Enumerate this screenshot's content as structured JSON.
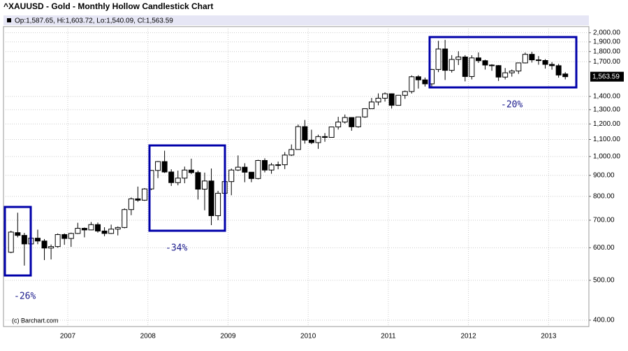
{
  "chart_data": {
    "type": "candlestick",
    "title": "^XAUUSD - Gold - Monthly Hollow Candlestick Chart",
    "info": "Op:1,587.65, Hi:1,603.72, Lo:1,540.09, Cl:1,563.59",
    "credit": "(c) Barchart.com",
    "annotations": [
      "-26%",
      "-34%",
      "-20%"
    ],
    "last_label": {
      "value": 1563.59,
      "label": "1,563.59"
    },
    "log_scale": true,
    "grid": true,
    "color": "#000000",
    "categories": [
      null,
      null,
      null,
      null,
      null,
      null,
      null,
      null,
      null,
      "2007",
      null,
      null,
      null,
      null,
      null,
      null,
      null,
      null,
      null,
      null,
      null,
      "2008",
      null,
      null,
      null,
      null,
      null,
      null,
      null,
      null,
      null,
      null,
      null,
      "2009",
      null,
      null,
      null,
      null,
      null,
      null,
      null,
      null,
      null,
      null,
      null,
      "2010",
      null,
      null,
      null,
      null,
      null,
      null,
      null,
      null,
      null,
      null,
      null,
      "2011",
      null,
      null,
      null,
      null,
      null,
      null,
      null,
      null,
      null,
      null,
      null,
      "2012",
      null,
      null,
      null,
      null,
      null,
      null,
      null,
      null,
      null,
      null,
      null,
      "2013",
      null,
      null
    ],
    "open": [
      585,
      653,
      643,
      613,
      633,
      623,
      599,
      604,
      646,
      632,
      650,
      669,
      663,
      683,
      659,
      650,
      666,
      672,
      743,
      789,
      783,
      834,
      925,
      972,
      917,
      864,
      886,
      927,
      914,
      833,
      872,
      718,
      814,
      869,
      927,
      942,
      916,
      884,
      978,
      927,
      954,
      955,
      1008,
      1040,
      1182,
      1096,
      1081,
      1118,
      1113,
      1180,
      1213,
      1244,
      1181,
      1248,
      1307,
      1357,
      1386,
      1421,
      1332,
      1409,
      1439,
      1563,
      1536,
      1502,
      1628,
      1826,
      1620,
      1722,
      1746,
      1565,
      1737,
      1710,
      1669,
      1664,
      1560,
      1598,
      1614,
      1689,
      1772,
      1718,
      1712,
      1675,
      1663,
      1587.65
    ],
    "high": [
      660,
      730,
      652,
      677,
      664,
      630,
      611,
      650,
      650,
      653,
      690,
      672,
      693,
      691,
      673,
      683,
      676,
      748,
      795,
      845,
      838,
      927,
      975,
      1033,
      931,
      924,
      945,
      988,
      924,
      914,
      935,
      825,
      883,
      935,
      1006,
      963,
      917,
      982,
      990,
      965,
      972,
      1025,
      1070,
      1196,
      1227,
      1162,
      1130,
      1140,
      1181,
      1249,
      1265,
      1246,
      1250,
      1308,
      1388,
      1424,
      1432,
      1424,
      1411,
      1447,
      1575,
      1577,
      1556,
      1633,
      1911,
      1921,
      1764,
      1803,
      1764,
      1763,
      1791,
      1720,
      1677,
      1669,
      1641,
      1627,
      1693,
      1790,
      1797,
      1755,
      1725,
      1697,
      1680,
      1603.72
    ],
    "low": [
      582,
      636,
      543,
      605,
      612,
      560,
      562,
      600,
      610,
      603,
      648,
      636,
      662,
      653,
      640,
      648,
      643,
      669,
      720,
      776,
      780,
      829,
      886,
      912,
      848,
      851,
      861,
      906,
      786,
      740,
      681,
      700,
      748,
      805,
      922,
      866,
      866,
      880,
      915,
      908,
      931,
      932,
      1003,
      1040,
      1075,
      1072,
      1044,
      1086,
      1113,
      1163,
      1203,
      1155,
      1175,
      1242,
      1313,
      1332,
      1360,
      1308,
      1330,
      1381,
      1423,
      1463,
      1480,
      1478,
      1604,
      1535,
      1600,
      1669,
      1523,
      1540,
      1689,
      1627,
      1616,
      1527,
      1540,
      1564,
      1588,
      1684,
      1692,
      1672,
      1636,
      1626,
      1555,
      1540.09
    ],
    "close": [
      655,
      643,
      613,
      633,
      623,
      599,
      604,
      646,
      632,
      650,
      669,
      663,
      683,
      659,
      650,
      666,
      672,
      743,
      789,
      783,
      834,
      925,
      972,
      917,
      864,
      886,
      927,
      914,
      833,
      872,
      718,
      814,
      869,
      927,
      942,
      916,
      884,
      978,
      927,
      954,
      955,
      1008,
      1040,
      1182,
      1096,
      1081,
      1118,
      1113,
      1180,
      1213,
      1244,
      1181,
      1248,
      1307,
      1357,
      1386,
      1421,
      1332,
      1409,
      1439,
      1563,
      1536,
      1502,
      1628,
      1826,
      1620,
      1722,
      1746,
      1565,
      1737,
      1710,
      1669,
      1664,
      1560,
      1598,
      1614,
      1689,
      1772,
      1718,
      1712,
      1675,
      1663,
      1578,
      1563.59
    ],
    "ylim": [
      386,
      2070
    ],
    "yticks": [
      {
        "value": 400,
        "label": "400.00"
      },
      {
        "value": 500,
        "label": "500.00"
      },
      {
        "value": 600,
        "label": "600.00"
      },
      {
        "value": 700,
        "label": "700.00"
      },
      {
        "value": 800,
        "label": "800.00"
      },
      {
        "value": 900,
        "label": "900.00"
      },
      {
        "value": 1000,
        "label": "1,000.00"
      },
      {
        "value": 1100,
        "label": "1,100.00"
      },
      {
        "value": 1200,
        "label": "1,200.00"
      },
      {
        "value": 1300,
        "label": "1,300.00"
      },
      {
        "value": 1400,
        "label": "1,400.00"
      },
      {
        "value": 1700,
        "label": "1,700.00"
      },
      {
        "value": 1800,
        "label": "1,800.00"
      },
      {
        "value": 1900,
        "label": "1,900.00"
      },
      {
        "value": 2000,
        "label": "2,000.00"
      }
    ]
  }
}
